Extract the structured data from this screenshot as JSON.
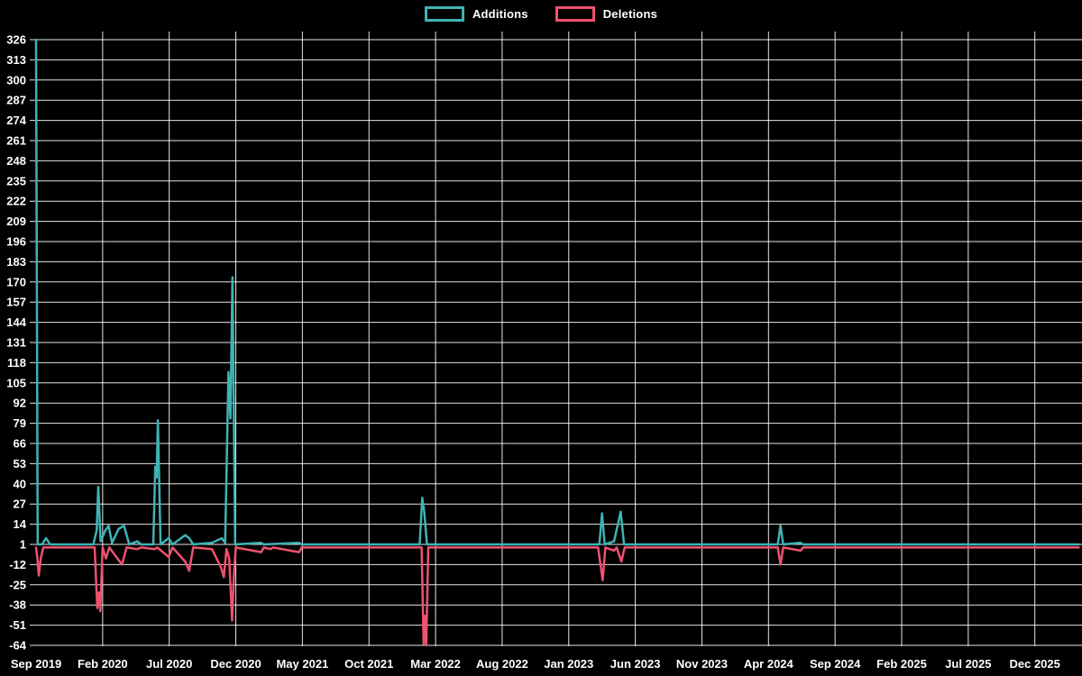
{
  "page": {
    "background": "#000000",
    "text_color": "#ffffff",
    "grid_color": "#ffffff"
  },
  "legend": [
    {
      "label": "Additions",
      "color": "#3fb3b4"
    },
    {
      "label": "Deletions",
      "color": "#ee5270"
    }
  ],
  "chart_data": {
    "type": "line",
    "title": "",
    "legend_position": "top-center",
    "grid": true,
    "x_axis": {
      "tick_labels": [
        "Sep 2019",
        "Feb 2020",
        "Jul 2020",
        "Dec 2020",
        "May 2021",
        "Oct 2021",
        "Mar 2022",
        "Aug 2022",
        "Jan 2023",
        "Jun 2023",
        "Nov 2023",
        "Apr 2024",
        "Sep 2024",
        "Feb 2025",
        "Jul 2025",
        "Dec 2025"
      ],
      "months_per_tick": 5,
      "extent_months": 78.5
    },
    "y_axis": {
      "tick_values": [
        326,
        313,
        300,
        287,
        274,
        261,
        248,
        235,
        222,
        209,
        196,
        183,
        170,
        157,
        144,
        131,
        118,
        105,
        92,
        79,
        66,
        53,
        40,
        27,
        14,
        1,
        -12,
        -25,
        -38,
        -51,
        -64
      ],
      "min": -64,
      "max": 326,
      "step": 13
    },
    "series": [
      {
        "name": "Additions",
        "color": "#3fb3b4",
        "points": [
          [
            0,
            326
          ],
          [
            0.12,
            1
          ],
          [
            0.45,
            1
          ],
          [
            0.75,
            5
          ],
          [
            1.05,
            1
          ],
          [
            4.3,
            1
          ],
          [
            4.55,
            10
          ],
          [
            4.67,
            38
          ],
          [
            4.85,
            3
          ],
          [
            5.2,
            10
          ],
          [
            5.45,
            13
          ],
          [
            5.7,
            2
          ],
          [
            6.2,
            11
          ],
          [
            6.6,
            13
          ],
          [
            7.0,
            1
          ],
          [
            7.6,
            3
          ],
          [
            7.9,
            1
          ],
          [
            8.8,
            1
          ],
          [
            8.95,
            51
          ],
          [
            9.05,
            44
          ],
          [
            9.15,
            81
          ],
          [
            9.35,
            1
          ],
          [
            9.95,
            5
          ],
          [
            10.25,
            1
          ],
          [
            11.2,
            7
          ],
          [
            11.5,
            5
          ],
          [
            11.8,
            1
          ],
          [
            13.2,
            2
          ],
          [
            13.95,
            5
          ],
          [
            14.2,
            2
          ],
          [
            14.45,
            112
          ],
          [
            14.6,
            82
          ],
          [
            14.75,
            173
          ],
          [
            14.95,
            1
          ],
          [
            16.9,
            2
          ],
          [
            17.1,
            1
          ],
          [
            19.75,
            2
          ],
          [
            19.95,
            1
          ],
          [
            28.8,
            1
          ],
          [
            29.0,
            31
          ],
          [
            29.15,
            22
          ],
          [
            29.35,
            1
          ],
          [
            42.3,
            1
          ],
          [
            42.5,
            21
          ],
          [
            42.7,
            1
          ],
          [
            43.4,
            3
          ],
          [
            43.9,
            22
          ],
          [
            44.15,
            1
          ],
          [
            55.7,
            1
          ],
          [
            55.9,
            13
          ],
          [
            56.1,
            1
          ],
          [
            57.4,
            2
          ],
          [
            57.6,
            1
          ],
          [
            78.3,
            1
          ]
        ]
      },
      {
        "name": "Deletions",
        "color": "#ee5270",
        "points": [
          [
            0,
            -1
          ],
          [
            0.1,
            -8
          ],
          [
            0.2,
            -19
          ],
          [
            0.35,
            -8
          ],
          [
            0.55,
            -1
          ],
          [
            4.4,
            -1
          ],
          [
            4.6,
            -40
          ],
          [
            4.72,
            -30
          ],
          [
            4.82,
            -42
          ],
          [
            5.0,
            -1
          ],
          [
            5.25,
            -8
          ],
          [
            5.5,
            -1
          ],
          [
            6.45,
            -12
          ],
          [
            6.8,
            -1
          ],
          [
            7.6,
            -2
          ],
          [
            7.9,
            -1
          ],
          [
            8.9,
            -2
          ],
          [
            9.1,
            -1
          ],
          [
            9.95,
            -7
          ],
          [
            10.25,
            -1
          ],
          [
            11.2,
            -10
          ],
          [
            11.5,
            -16
          ],
          [
            11.8,
            -1
          ],
          [
            13.2,
            -2
          ],
          [
            13.9,
            -14
          ],
          [
            14.1,
            -20
          ],
          [
            14.3,
            -2
          ],
          [
            14.5,
            -8
          ],
          [
            14.72,
            -48
          ],
          [
            14.85,
            -20
          ],
          [
            15.0,
            -1
          ],
          [
            16.9,
            -4
          ],
          [
            17.1,
            -1
          ],
          [
            17.6,
            -2
          ],
          [
            17.8,
            -1
          ],
          [
            19.75,
            -4
          ],
          [
            19.95,
            -1
          ],
          [
            28.95,
            -1
          ],
          [
            29.1,
            -63
          ],
          [
            29.2,
            -45
          ],
          [
            29.3,
            -64
          ],
          [
            29.45,
            -1
          ],
          [
            42.2,
            -1
          ],
          [
            42.4,
            -13
          ],
          [
            42.55,
            -22
          ],
          [
            42.75,
            -1
          ],
          [
            43.4,
            -3
          ],
          [
            43.6,
            -1
          ],
          [
            43.95,
            -10
          ],
          [
            44.2,
            -1
          ],
          [
            55.7,
            -1
          ],
          [
            55.9,
            -12
          ],
          [
            56.1,
            -1
          ],
          [
            57.4,
            -3
          ],
          [
            57.6,
            -1
          ],
          [
            78.3,
            -1
          ]
        ]
      }
    ]
  }
}
